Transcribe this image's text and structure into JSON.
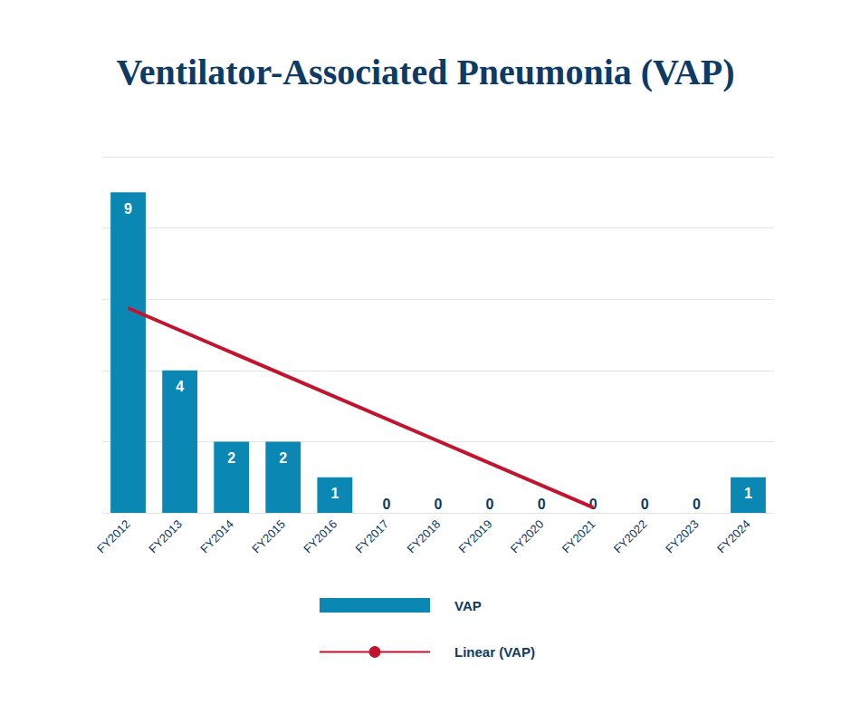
{
  "chart_data": {
    "type": "bar",
    "title": "Ventilator-Associated Pneumonia (VAP)",
    "categories": [
      "FY2012",
      "FY2013",
      "FY2014",
      "FY2015",
      "FY2016",
      "FY2017",
      "FY2018",
      "FY2019",
      "FY2020",
      "FY2021",
      "FY2022",
      "FY2023",
      "FY2024"
    ],
    "series": [
      {
        "name": "VAP",
        "type": "bar",
        "color": "#0a87b2",
        "data_labels": true,
        "values": [
          9,
          4,
          2,
          2,
          1,
          0,
          0,
          0,
          0,
          0,
          0,
          0,
          1
        ]
      },
      {
        "name": "Linear (VAP)",
        "type": "line",
        "color": "#c2132f",
        "line_style": "solid",
        "values": [
          5.75,
          null,
          null,
          null,
          null,
          null,
          null,
          null,
          null,
          0.15,
          null,
          null,
          null
        ]
      }
    ],
    "ylim": [
      0,
      10
    ],
    "yticks": [
      0,
      2,
      4,
      6,
      8,
      10
    ],
    "grid": true,
    "tick_labels": "x",
    "legend": "bottom"
  }
}
